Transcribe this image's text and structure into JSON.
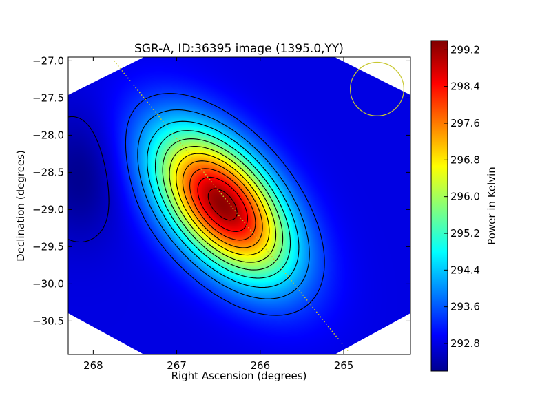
{
  "chart_data": {
    "type": "heatmap",
    "title": "SGR-A, ID:36395 image (1395.0,YY)",
    "xlabel": "Right Ascension (degrees)",
    "ylabel": "Declination (degrees)",
    "xlim": [
      268.3,
      264.2
    ],
    "ylim": [
      -30.95,
      -26.95
    ],
    "x_ticks": [
      268,
      267,
      266,
      265
    ],
    "x_tick_labels": [
      "268",
      "267",
      "266",
      "265"
    ],
    "y_ticks": [
      -27.0,
      -27.5,
      -28.0,
      -28.5,
      -29.0,
      -29.5,
      -30.0,
      -30.5
    ],
    "y_tick_labels": [
      "−27.0",
      "−27.5",
      "−28.0",
      "−28.5",
      "−29.0",
      "−29.5",
      "−30.0",
      "−30.5"
    ],
    "colorbar": {
      "label": "Power in Kelvin",
      "range": [
        292.2,
        299.4
      ],
      "ticks": [
        299.2,
        298.4,
        297.6,
        296.8,
        296.0,
        295.2,
        294.4,
        293.6,
        292.8
      ],
      "tick_labels": [
        "299.2",
        "298.4",
        "297.6",
        "296.8",
        "296.0",
        "295.2",
        "294.4",
        "293.6",
        "292.8"
      ],
      "colormap": "jet"
    },
    "peak": {
      "ra": 266.45,
      "dec": -28.93,
      "value": 299.3
    },
    "background_value": 292.9,
    "secondary_low": {
      "ra": 268.15,
      "dec": -28.55,
      "value": 292.3
    },
    "contours": "black",
    "beam_circle": {
      "ra": 264.6,
      "dec": -27.38,
      "radius_deg": 0.36,
      "color": "#c8c832"
    },
    "galactic_plane_line": {
      "start": [
        267.75,
        -27.0
      ],
      "end": [
        264.95,
        -30.9
      ],
      "color": "#c8c832",
      "style": "dotted"
    }
  },
  "colors": {
    "contour": "#000000",
    "annotation": "#c8c832",
    "axes": "#000000"
  }
}
